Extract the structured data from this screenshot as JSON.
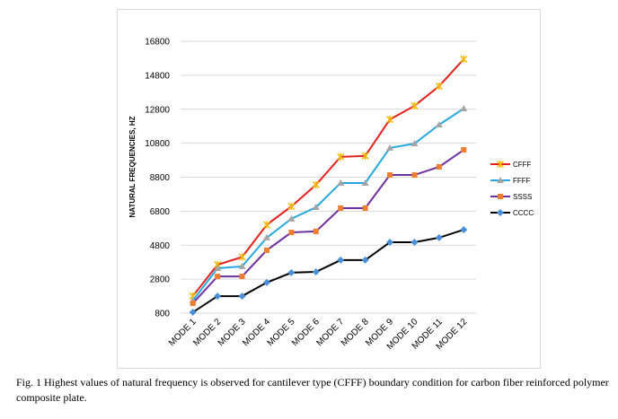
{
  "chart_data": {
    "type": "line",
    "y_label": "NATURAL FREQUENCIES, HZ",
    "categories": [
      "MODE 1",
      "MODE 2",
      "MODE 3",
      "MODE 4",
      "MODE 5",
      "MODE 6",
      "MODE 7",
      "MODE 8",
      "MODE 9",
      "MODE 10",
      "MODE 11",
      "MODE 12"
    ],
    "series": [
      {
        "name": "CFFF",
        "color": "#e3201b",
        "marker": "star",
        "marker_color": "#f5b800",
        "values": [
          1800,
          3650,
          4100,
          6000,
          7080,
          8350,
          10000,
          10050,
          12200,
          13000,
          14160,
          15750
        ]
      },
      {
        "name": "FFFF",
        "color": "#29a8e0",
        "marker": "triangle",
        "marker_color": "#a5a5a5",
        "values": [
          1540,
          3440,
          3550,
          5240,
          6350,
          7030,
          8460,
          8460,
          10520,
          10780,
          11890,
          12840
        ]
      },
      {
        "name": "SSSS",
        "color": "#7030a0",
        "marker": "square",
        "marker_color": "#ed7d31",
        "values": [
          1380,
          2960,
          2960,
          4500,
          5550,
          5610,
          6980,
          6980,
          8930,
          8930,
          9410,
          10410
        ]
      },
      {
        "name": "CCCC",
        "color": "#000000",
        "marker": "diamond",
        "marker_color": "#4a90d9",
        "values": [
          850,
          1800,
          1800,
          2600,
          3180,
          3230,
          3920,
          3920,
          4970,
          4970,
          5240,
          5710
        ]
      }
    ],
    "ylim": [
      800,
      16800
    ],
    "yticks": [
      800,
      2800,
      4800,
      6800,
      8800,
      10800,
      12800,
      14800,
      16800
    ],
    "grid": true,
    "legend": "right"
  },
  "caption": "Fig. 1 Highest values of natural frequency is observed for cantilever type (CFFF) boundary condition for carbon fiber reinforced polymer composite plate."
}
